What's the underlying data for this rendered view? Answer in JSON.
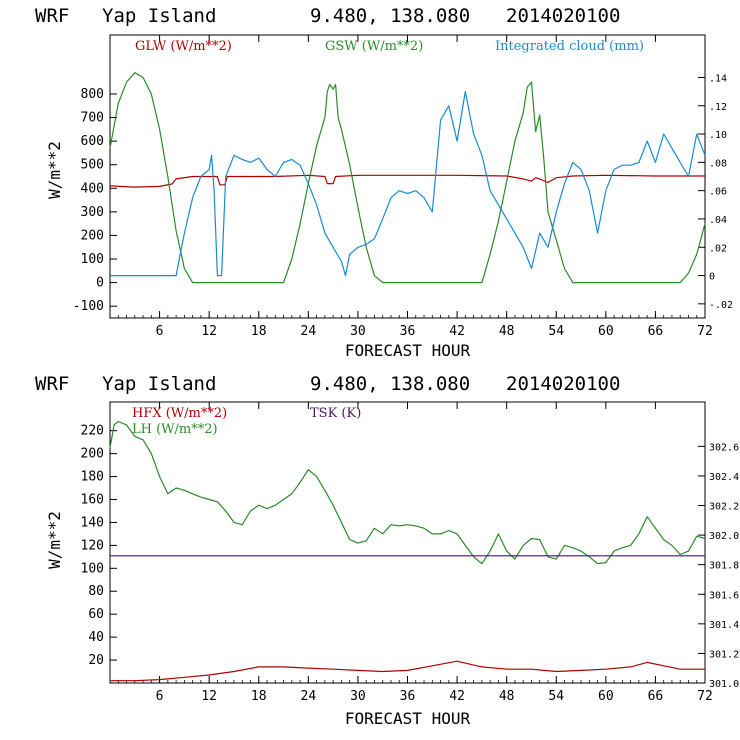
{
  "chart_data": [
    {
      "type": "line",
      "header": {
        "model": "WRF",
        "station": "Yap Island",
        "coords": "9.480, 138.080",
        "init": "2014020100"
      },
      "xlabel": "FORECAST HOUR",
      "ylabel": "W/m**2",
      "xlim": [
        0,
        72
      ],
      "ylim": [
        -150,
        1050
      ],
      "y2lim": [
        -0.03,
        0.17
      ],
      "x_ticks": [
        6,
        12,
        18,
        24,
        30,
        36,
        42,
        48,
        54,
        60,
        66,
        72
      ],
      "y_ticks": [
        -100,
        0,
        100,
        200,
        300,
        400,
        500,
        600,
        700,
        800
      ],
      "y2_ticks": [
        -0.02,
        0,
        0.02,
        0.04,
        0.06,
        0.08,
        0.1,
        0.12,
        0.14
      ],
      "y2_tick_labels": [
        "-.02",
        "0",
        ".02",
        ".04",
        ".06",
        ".08",
        ".10",
        ".12",
        ".14"
      ],
      "legend_placement": "top",
      "series": [
        {
          "name": "GLW (W/m**2)",
          "color": "#b00000",
          "axis": "left",
          "points": [
            [
              0,
              410
            ],
            [
              3,
              405
            ],
            [
              6,
              408
            ],
            [
              7.5,
              418
            ],
            [
              8,
              440
            ],
            [
              10,
              450
            ],
            [
              13,
              450
            ],
            [
              13.3,
              415
            ],
            [
              13.9,
              415
            ],
            [
              14.2,
              450
            ],
            [
              20,
              450
            ],
            [
              24,
              455
            ],
            [
              26,
              450
            ],
            [
              26.3,
              420
            ],
            [
              27,
              420
            ],
            [
              27.3,
              450
            ],
            [
              30,
              455
            ],
            [
              36,
              455
            ],
            [
              42,
              455
            ],
            [
              48,
              452
            ],
            [
              50,
              440
            ],
            [
              51,
              430
            ],
            [
              51.5,
              445
            ],
            [
              52,
              440
            ],
            [
              53,
              425
            ],
            [
              54,
              445
            ],
            [
              56,
              452
            ],
            [
              60,
              455
            ],
            [
              66,
              452
            ],
            [
              72,
              452
            ]
          ]
        },
        {
          "name": "GSW (W/m**2)",
          "color": "#2a8a2a",
          "axis": "left",
          "points": [
            [
              0,
              570
            ],
            [
              1,
              760
            ],
            [
              2,
              850
            ],
            [
              3,
              890
            ],
            [
              4,
              870
            ],
            [
              5,
              800
            ],
            [
              6,
              650
            ],
            [
              7,
              450
            ],
            [
              8,
              220
            ],
            [
              9,
              60
            ],
            [
              10,
              0
            ],
            [
              21,
              0
            ],
            [
              22,
              100
            ],
            [
              23,
              250
            ],
            [
              24,
              420
            ],
            [
              25,
              580
            ],
            [
              26,
              700
            ],
            [
              26.3,
              810
            ],
            [
              26.6,
              840
            ],
            [
              27,
              820
            ],
            [
              27.3,
              840
            ],
            [
              27.6,
              700
            ],
            [
              28,
              650
            ],
            [
              29,
              500
            ],
            [
              30,
              320
            ],
            [
              31,
              150
            ],
            [
              32,
              30
            ],
            [
              33,
              0
            ],
            [
              45,
              0
            ],
            [
              46,
              120
            ],
            [
              47,
              260
            ],
            [
              48,
              430
            ],
            [
              49,
              600
            ],
            [
              50,
              720
            ],
            [
              50.5,
              830
            ],
            [
              51,
              850
            ],
            [
              51.5,
              640
            ],
            [
              52,
              710
            ],
            [
              52.5,
              520
            ],
            [
              53,
              300
            ],
            [
              54,
              180
            ],
            [
              55,
              60
            ],
            [
              56,
              0
            ],
            [
              69,
              0
            ],
            [
              70,
              40
            ],
            [
              71,
              120
            ],
            [
              72,
              250
            ]
          ]
        },
        {
          "name": "Integrated cloud (mm)",
          "color": "#1a8ad4",
          "axis": "right",
          "points": [
            [
              0,
              0
            ],
            [
              8,
              0
            ],
            [
              8.5,
              0.015
            ],
            [
              9,
              0.03
            ],
            [
              10,
              0.055
            ],
            [
              11,
              0.07
            ],
            [
              12,
              0.075
            ],
            [
              12.3,
              0.085
            ],
            [
              12.6,
              0.06
            ],
            [
              13,
              0.0
            ],
            [
              13.5,
              0.0
            ],
            [
              14,
              0.07
            ],
            [
              15,
              0.085
            ],
            [
              16,
              0.082
            ],
            [
              17,
              0.08
            ],
            [
              18,
              0.083
            ],
            [
              19,
              0.075
            ],
            [
              20,
              0.07
            ],
            [
              21,
              0.08
            ],
            [
              22,
              0.082
            ],
            [
              23,
              0.078
            ],
            [
              24,
              0.065
            ],
            [
              25,
              0.05
            ],
            [
              26,
              0.03
            ],
            [
              27,
              0.02
            ],
            [
              28,
              0.01
            ],
            [
              28.5,
              0.0
            ],
            [
              29,
              0.015
            ],
            [
              30,
              0.02
            ],
            [
              31,
              0.022
            ],
            [
              32,
              0.026
            ],
            [
              33,
              0.04
            ],
            [
              34,
              0.055
            ],
            [
              35,
              0.06
            ],
            [
              36,
              0.058
            ],
            [
              37,
              0.06
            ],
            [
              38,
              0.055
            ],
            [
              39,
              0.045
            ],
            [
              40,
              0.11
            ],
            [
              41,
              0.12
            ],
            [
              42,
              0.095
            ],
            [
              43,
              0.13
            ],
            [
              44,
              0.1
            ],
            [
              45,
              0.085
            ],
            [
              46,
              0.06
            ],
            [
              47,
              0.05
            ],
            [
              48,
              0.04
            ],
            [
              49,
              0.03
            ],
            [
              50,
              0.02
            ],
            [
              51,
              0.005
            ],
            [
              52,
              0.03
            ],
            [
              53,
              0.02
            ],
            [
              54,
              0.045
            ],
            [
              55,
              0.065
            ],
            [
              56,
              0.08
            ],
            [
              57,
              0.075
            ],
            [
              58,
              0.06
            ],
            [
              59,
              0.03
            ],
            [
              60,
              0.06
            ],
            [
              61,
              0.075
            ],
            [
              62,
              0.078
            ],
            [
              63,
              0.078
            ],
            [
              64,
              0.08
            ],
            [
              65,
              0.095
            ],
            [
              66,
              0.08
            ],
            [
              67,
              0.1
            ],
            [
              68,
              0.09
            ],
            [
              69,
              0.08
            ],
            [
              70,
              0.07
            ],
            [
              71,
              0.1
            ],
            [
              72,
              0.085
            ]
          ]
        }
      ]
    },
    {
      "type": "line",
      "header": {
        "model": "WRF",
        "station": "Yap Island",
        "coords": "9.480, 138.080",
        "init": "2014020100"
      },
      "xlabel": "FORECAST HOUR",
      "ylabel": "W/m**2",
      "xlim": [
        0,
        72
      ],
      "ylim": [
        0,
        245
      ],
      "y2lim": [
        301.0,
        302.9
      ],
      "x_ticks": [
        6,
        12,
        18,
        24,
        30,
        36,
        42,
        48,
        54,
        60,
        66,
        72
      ],
      "y_ticks": [
        20,
        40,
        60,
        80,
        100,
        120,
        140,
        160,
        180,
        200,
        220
      ],
      "y2_ticks": [
        301.0,
        301.2,
        301.4,
        301.6,
        301.8,
        302.0,
        302.2,
        302.4,
        302.6
      ],
      "y2_tick_labels": [
        "301.0",
        "301.2",
        "301.4",
        "301.6",
        "301.8",
        "302.0",
        "302.2",
        "302.4",
        "302.6"
      ],
      "legend_placement": "top-left",
      "series": [
        {
          "name": "HFX (W/m**2)",
          "color": "#b00000",
          "axis": "left",
          "points": [
            [
              0,
              2
            ],
            [
              3,
              2
            ],
            [
              6,
              3
            ],
            [
              9,
              5
            ],
            [
              12,
              7
            ],
            [
              15,
              10
            ],
            [
              18,
              14
            ],
            [
              21,
              14
            ],
            [
              24,
              13
            ],
            [
              27,
              12
            ],
            [
              30,
              11
            ],
            [
              33,
              10
            ],
            [
              36,
              11
            ],
            [
              39,
              15
            ],
            [
              42,
              19
            ],
            [
              45,
              14
            ],
            [
              48,
              12
            ],
            [
              51,
              12
            ],
            [
              54,
              10
            ],
            [
              57,
              11
            ],
            [
              60,
              12
            ],
            [
              63,
              14
            ],
            [
              65,
              18
            ],
            [
              67,
              15
            ],
            [
              69,
              12
            ],
            [
              72,
              12
            ]
          ]
        },
        {
          "name": "LH (W/m**2)",
          "color": "#2a8a2a",
          "axis": "left",
          "points": [
            [
              0,
              205
            ],
            [
              0.5,
              225
            ],
            [
              1,
              228
            ],
            [
              2,
              225
            ],
            [
              3,
              215
            ],
            [
              4,
              212
            ],
            [
              5,
              200
            ],
            [
              6,
              180
            ],
            [
              7,
              165
            ],
            [
              8,
              170
            ],
            [
              9,
              168
            ],
            [
              10,
              165
            ],
            [
              11,
              162
            ],
            [
              12,
              160
            ],
            [
              13,
              158
            ],
            [
              14,
              150
            ],
            [
              15,
              140
            ],
            [
              16,
              138
            ],
            [
              17,
              150
            ],
            [
              18,
              155
            ],
            [
              19,
              152
            ],
            [
              20,
              155
            ],
            [
              21,
              160
            ],
            [
              22,
              165
            ],
            [
              23,
              175
            ],
            [
              24,
              186
            ],
            [
              25,
              180
            ],
            [
              26,
              168
            ],
            [
              27,
              155
            ],
            [
              28,
              140
            ],
            [
              29,
              125
            ],
            [
              30,
              122
            ],
            [
              31,
              124
            ],
            [
              32,
              135
            ],
            [
              33,
              130
            ],
            [
              34,
              138
            ],
            [
              35,
              137
            ],
            [
              36,
              138
            ],
            [
              37,
              137
            ],
            [
              38,
              135
            ],
            [
              39,
              130
            ],
            [
              40,
              130
            ],
            [
              41,
              133
            ],
            [
              42,
              130
            ],
            [
              43,
              120
            ],
            [
              44,
              110
            ],
            [
              45,
              104
            ],
            [
              46,
              115
            ],
            [
              47,
              130
            ],
            [
              48,
              115
            ],
            [
              49,
              108
            ],
            [
              50,
              120
            ],
            [
              51,
              126
            ],
            [
              52,
              125
            ],
            [
              53,
              110
            ],
            [
              54,
              108
            ],
            [
              55,
              120
            ],
            [
              56,
              118
            ],
            [
              57,
              115
            ],
            [
              58,
              110
            ],
            [
              59,
              104
            ],
            [
              60,
              105
            ],
            [
              61,
              115
            ],
            [
              62,
              118
            ],
            [
              63,
              120
            ],
            [
              64,
              130
            ],
            [
              65,
              145
            ],
            [
              66,
              135
            ],
            [
              67,
              125
            ],
            [
              68,
              120
            ],
            [
              69,
              112
            ],
            [
              70,
              115
            ],
            [
              71,
              128
            ],
            [
              72,
              126
            ]
          ]
        },
        {
          "name": "TSK (K)",
          "color": "#4b1560",
          "axis": "right",
          "points": [
            [
              0,
              301.86
            ],
            [
              72,
              301.86
            ]
          ]
        }
      ]
    }
  ]
}
